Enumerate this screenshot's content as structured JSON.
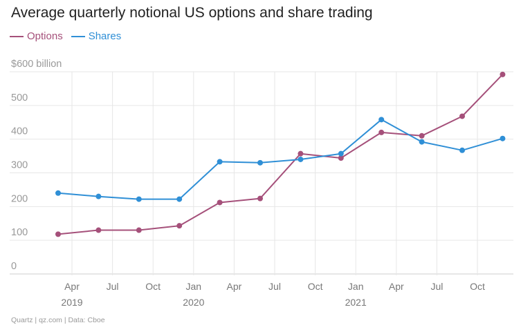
{
  "chart_data": {
    "type": "line",
    "title": "Average quarterly notional US options and share trading",
    "xlabel": "",
    "ylabel": "",
    "ylim": [
      0,
      600
    ],
    "y_ticks": [
      {
        "value": 0,
        "label": "0"
      },
      {
        "value": 100,
        "label": "100"
      },
      {
        "value": 200,
        "label": "200"
      },
      {
        "value": 300,
        "label": "300"
      },
      {
        "value": 400,
        "label": "400"
      },
      {
        "value": 500,
        "label": "500"
      },
      {
        "value": 600,
        "label": "$600 billion"
      }
    ],
    "x_ticks": [
      "Apr",
      "Jul",
      "Oct",
      "Jan",
      "Apr",
      "Jul",
      "Oct",
      "Jan",
      "Apr",
      "Jul",
      "Oct"
    ],
    "year_labels": [
      {
        "label": "2019",
        "tick_index": 0
      },
      {
        "label": "2020",
        "tick_index": 3
      },
      {
        "label": "2021",
        "tick_index": 7
      }
    ],
    "categories": [
      "Q1 2019",
      "Q2 2019",
      "Q3 2019",
      "Q4 2019",
      "Q1 2020",
      "Q2 2020",
      "Q3 2020",
      "Q4 2020",
      "Q1 2021",
      "Q2 2021",
      "Q3 2021",
      "Q4 2021"
    ],
    "series": [
      {
        "name": "Options",
        "color": "#a5507a",
        "values": [
          118,
          130,
          130,
          143,
          212,
          224,
          357,
          344,
          420,
          410,
          468,
          592
        ]
      },
      {
        "name": "Shares",
        "color": "#2f8fd6",
        "values": [
          240,
          230,
          222,
          222,
          333,
          330,
          340,
          357,
          458,
          392,
          367,
          402
        ]
      }
    ]
  },
  "footer": {
    "source": "Quartz | qz.com | Data: Cboe"
  },
  "colors": {
    "grid": "#e6e6e6",
    "tick_text": "#999999",
    "axis_text": "#777777",
    "title_text": "#222222"
  }
}
